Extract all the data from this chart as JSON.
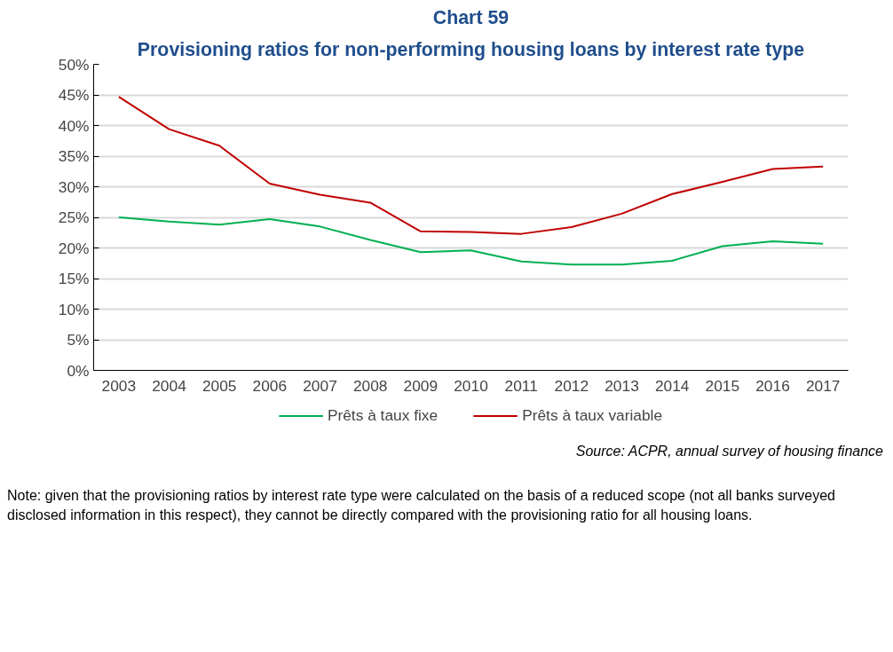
{
  "chart_data": {
    "type": "line",
    "title": "Chart 59",
    "subtitle": "Provisioning ratios for non-performing housing loans by interest rate type",
    "categories": [
      "2003",
      "2004",
      "2005",
      "2006",
      "2007",
      "2008",
      "2009",
      "2010",
      "2011",
      "2012",
      "2013",
      "2014",
      "2015",
      "2016",
      "2017"
    ],
    "series": [
      {
        "name": "Prêts à taux fixe",
        "color": "#00b050",
        "values": [
          25.0,
          24.3,
          23.8,
          24.7,
          23.5,
          21.3,
          19.3,
          19.6,
          17.8,
          17.3,
          17.3,
          17.9,
          20.3,
          21.1,
          20.7
        ]
      },
      {
        "name": "Prêts à taux variable",
        "color": "#c00000",
        "values": [
          44.7,
          39.4,
          36.7,
          30.5,
          28.7,
          27.4,
          22.7,
          22.6,
          22.3,
          23.4,
          25.6,
          28.8,
          30.8,
          32.9,
          33.3
        ]
      }
    ],
    "ylim": [
      0,
      50
    ],
    "yticks": [
      {
        "value": 0,
        "label": "0%"
      },
      {
        "value": 5,
        "label": "5%"
      },
      {
        "value": 10,
        "label": "10%"
      },
      {
        "value": 15,
        "label": "15%"
      },
      {
        "value": 20,
        "label": "20%"
      },
      {
        "value": 25,
        "label": "25%"
      },
      {
        "value": 30,
        "label": "30%"
      },
      {
        "value": 35,
        "label": "35%"
      },
      {
        "value": 40,
        "label": "40%"
      },
      {
        "value": 45,
        "label": "45%"
      },
      {
        "value": 50,
        "label": "50%"
      }
    ],
    "grid": "y",
    "legend": "bottom",
    "marker": "none",
    "line_style": "solid",
    "annotations": [
      "Source: ACPR, annual survey of housing finance",
      "Note: given that the provisioning ratios by interest rate type were calculated on the basis of a reduced scope (not all banks surveyed disclosed information in this respect), they cannot be directly compared with the provisioning ratio for all housing loans."
    ]
  }
}
